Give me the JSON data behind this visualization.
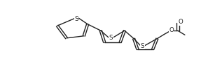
{
  "bg_color": "#ffffff",
  "line_color": "#222222",
  "line_width": 1.0,
  "figsize": [
    3.07,
    0.98
  ],
  "dpi": 100,
  "xlim": [
    0,
    307
  ],
  "ylim": [
    0,
    98
  ]
}
